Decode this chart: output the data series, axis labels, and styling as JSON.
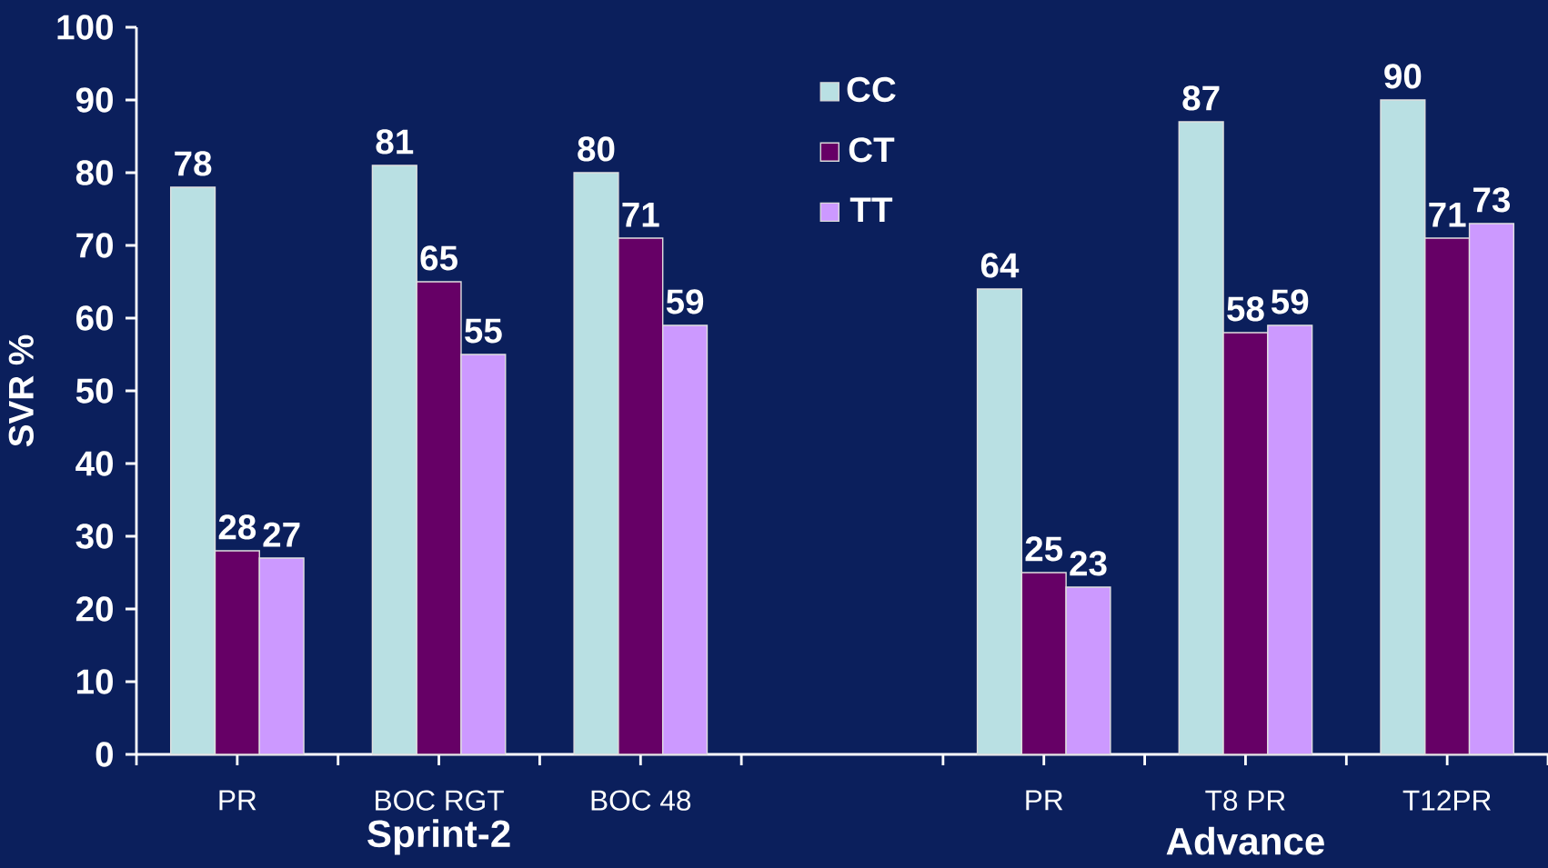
{
  "chart_data": {
    "type": "bar",
    "ylabel": "SVR %",
    "categories": [
      "PR",
      "BOC RGT",
      "BOC 48",
      null,
      "PR",
      "T8 PR",
      "T12PR"
    ],
    "series": [
      {
        "name": "CC",
        "color": "#b9e0e3",
        "values": [
          78,
          81,
          80,
          null,
          64,
          87,
          90
        ]
      },
      {
        "name": "CT",
        "color": "#660066",
        "values": [
          28,
          65,
          71,
          null,
          25,
          58,
          71
        ]
      },
      {
        "name": "TT",
        "color": "#cc99ff",
        "values": [
          27,
          55,
          59,
          null,
          23,
          59,
          73
        ]
      }
    ],
    "ylim": [
      0,
      100
    ],
    "yticks": [
      0,
      10,
      20,
      30,
      40,
      50,
      60,
      70,
      80,
      90,
      100
    ],
    "data_labels": true,
    "legend": "top",
    "grid": false,
    "annotations": [
      "Sprint-2",
      "Advance"
    ]
  }
}
